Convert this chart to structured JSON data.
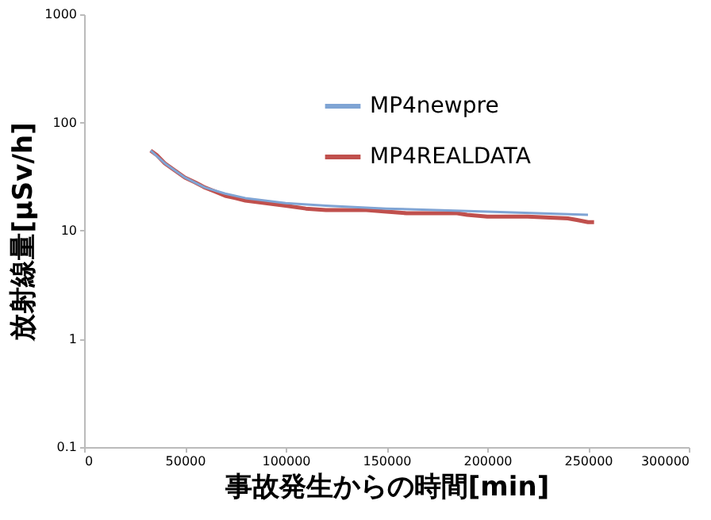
{
  "chart_data": {
    "type": "line",
    "xlabel": "事故発生からの時間[min]",
    "ylabel": "放射線量[μSv/h]",
    "log": "y",
    "xlim": [
      0,
      300000
    ],
    "xticks": [
      0,
      50000,
      100000,
      150000,
      200000,
      250000,
      300000
    ],
    "ylim": [
      0.1,
      1000
    ],
    "yticks": [
      0.1,
      1,
      10,
      100,
      1000
    ],
    "grid": false,
    "legend": "top right",
    "marker": "none",
    "line_style": "solid",
    "series": [
      {
        "name": "MP4newpre",
        "color": "#7fa4d4",
        "x": [
          33000,
          40000,
          50000,
          60000,
          70000,
          80000,
          100000,
          120000,
          150000,
          200000,
          250000
        ],
        "values": [
          55,
          42,
          31,
          25,
          22,
          20,
          18,
          17,
          16,
          15,
          14
        ]
      },
      {
        "name": "MP4REALDATA",
        "color": "#c0504d",
        "x": [
          33000,
          36000,
          40000,
          45000,
          50000,
          55000,
          60000,
          65000,
          70000,
          75000,
          80000,
          90000,
          100000,
          110000,
          120000,
          140000,
          150000,
          160000,
          185000,
          190000,
          200000,
          220000,
          240000,
          245000,
          250000,
          253000
        ],
        "values": [
          55,
          50,
          42,
          36,
          31,
          28,
          25,
          23,
          21,
          20,
          19,
          18,
          17,
          16,
          15.5,
          15.5,
          15,
          14.5,
          14.5,
          14,
          13.5,
          13.5,
          13,
          12.5,
          12,
          12
        ]
      }
    ]
  }
}
